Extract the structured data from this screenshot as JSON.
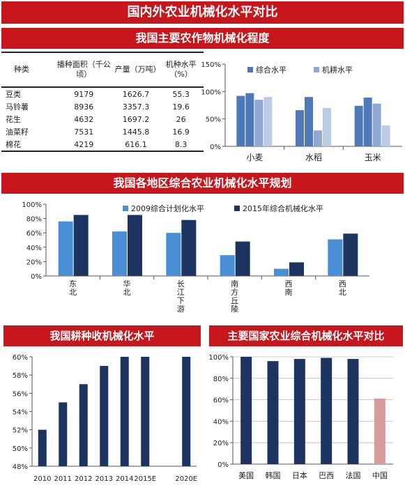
{
  "title": "国内外农业机械化水平对比",
  "sections": {
    "crops": "我国主要农作物机械化程度",
    "regions": "我国各地区综合农业机械化水平规划",
    "years": "我国耕种收机械化水平",
    "countries": "主要国家农业综合机械化水平对比"
  },
  "crop_table": {
    "headers": [
      "种类",
      "播种面积（千公顷）",
      "产量（万吨）",
      "机种水平（%）"
    ],
    "rows": [
      [
        "豆类",
        "9179",
        "1626.7",
        "55.3"
      ],
      [
        "马铃薯",
        "8936",
        "3357.3",
        "19.6"
      ],
      [
        "花生",
        "4632",
        "1697.2",
        "26"
      ],
      [
        "油菜籽",
        "7531",
        "1445.8",
        "16.9"
      ],
      [
        "棉花",
        "4219",
        "616.1",
        "8.3"
      ]
    ]
  },
  "chart_data": [
    {
      "type": "bar",
      "categories": [
        "小麦",
        "水稻",
        "玉米"
      ],
      "series": [
        {
          "name": "综合水平",
          "values": [
            92,
            66,
            74
          ],
          "color": "#4e79b6"
        },
        {
          "name": "",
          "values": [
            97,
            90,
            89
          ],
          "color": "#4e79b6"
        },
        {
          "name": "机耕水平",
          "values": [
            85,
            29,
            78
          ],
          "color": "#8fa9d4"
        },
        {
          "name": "",
          "values": [
            90,
            70,
            38
          ],
          "color": "#bccbe5"
        }
      ],
      "ylim": [
        0,
        150
      ],
      "yticks": [
        "0%",
        "50%",
        "100%",
        "150%"
      ],
      "legend": "top"
    },
    {
      "type": "bar",
      "categories": [
        "东\n北",
        "华\n北",
        "长\n江\n下\n游",
        "南\n方\n丘\n陵",
        "西\n南",
        "西\n北"
      ],
      "series": [
        {
          "name": "2009综合计划化水平",
          "values": [
            76,
            62,
            60,
            29,
            10,
            51
          ],
          "color": "#4a8fd6"
        },
        {
          "name": "2015年综合机械化水平",
          "values": [
            85,
            85,
            78,
            48,
            19,
            59
          ],
          "color": "#1d3461"
        }
      ],
      "ylim": [
        0,
        100
      ],
      "yticks": [
        "0%",
        "20%",
        "40%",
        "60%",
        "80%",
        "100%"
      ],
      "legend": "top"
    },
    {
      "type": "bar",
      "categories": [
        "2010",
        "2011",
        "2012",
        "2013",
        "2014",
        "2015E",
        "",
        "2020E"
      ],
      "values": [
        52,
        55,
        57,
        59,
        60,
        60,
        null,
        60
      ],
      "color": "#1d3461",
      "ylim": [
        48,
        60
      ],
      "yticks": [
        "48%",
        "50%",
        "52%",
        "54%",
        "56%",
        "58%",
        "60%"
      ]
    },
    {
      "type": "bar",
      "categories": [
        "美国",
        "韩国",
        "日本",
        "巴西",
        "法国",
        "中国"
      ],
      "values": [
        100,
        96,
        98,
        99,
        98,
        61
      ],
      "colors": [
        "#1d3461",
        "#1d3461",
        "#1d3461",
        "#1d3461",
        "#1d3461",
        "#d89a9b"
      ],
      "ylim": [
        0,
        100
      ],
      "yticks": [
        "0%",
        "20%",
        "40%",
        "60%",
        "80%",
        "100%"
      ]
    }
  ]
}
